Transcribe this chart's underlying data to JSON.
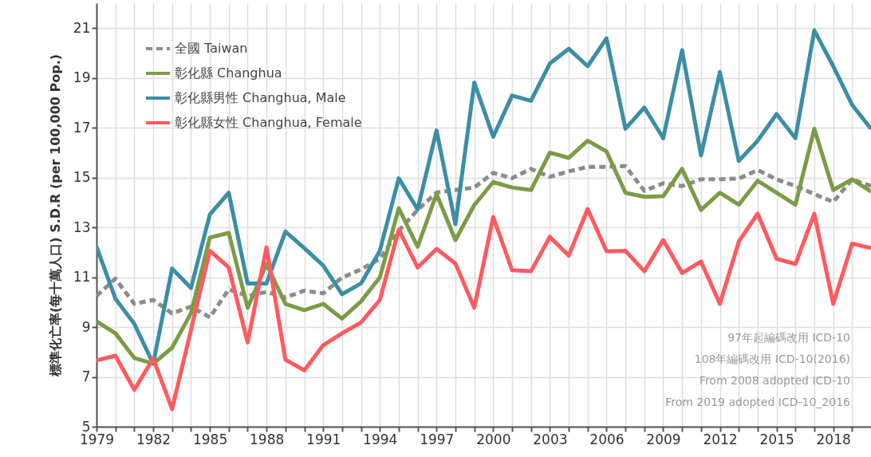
{
  "chart_data": {
    "type": "line",
    "ylabel": "標準化亡率(每十萬人口)  S.D.R (per 100,000 Pop.)",
    "x": [
      1979,
      1980,
      1981,
      1982,
      1983,
      1984,
      1985,
      1986,
      1987,
      1988,
      1989,
      1990,
      1991,
      1992,
      1993,
      1994,
      1995,
      1996,
      1997,
      1998,
      1999,
      2000,
      2001,
      2002,
      2003,
      2004,
      2005,
      2006,
      2007,
      2008,
      2009,
      2010,
      2011,
      2012,
      2013,
      2014,
      2015,
      2016,
      2017,
      2018,
      2019,
      2020
    ],
    "series": [
      {
        "name": "全國 Taiwan",
        "color": "#8c8c8c",
        "line_style": "dashed",
        "values": [
          10.25,
          10.94,
          9.93,
          10.09,
          9.55,
          9.82,
          9.39,
          10.51,
          10.25,
          10.41,
          10.19,
          10.46,
          10.35,
          10.99,
          11.31,
          11.74,
          12.86,
          13.7,
          14.4,
          14.5,
          14.6,
          15.19,
          14.98,
          15.35,
          15.03,
          15.25,
          15.43,
          15.43,
          15.46,
          14.47,
          14.77,
          14.66,
          14.93,
          14.93,
          14.96,
          15.3,
          14.93,
          14.66,
          14.34,
          14.02,
          14.93,
          14.66
        ]
      },
      {
        "name": "彰化縣 Changhua",
        "color": "#7b9c47",
        "line_style": "solid",
        "values": [
          9.23,
          8.75,
          7.76,
          7.53,
          8.17,
          9.55,
          12.59,
          12.78,
          9.77,
          11.53,
          9.93,
          9.68,
          9.93,
          9.34,
          10.03,
          10.99,
          13.77,
          12.22,
          14.34,
          12.49,
          13.9,
          14.82,
          14.6,
          14.5,
          16.0,
          15.79,
          16.48,
          16.05,
          14.39,
          14.23,
          14.25,
          15.35,
          13.7,
          14.39,
          13.91,
          14.87,
          14.39,
          13.91,
          16.96,
          14.5,
          14.93,
          14.44
        ]
      },
      {
        "name": "彰化縣男性 Changhua, Male",
        "color": "#3b8ea5",
        "line_style": "solid",
        "values": [
          12.22,
          10.14,
          9.13,
          7.53,
          11.35,
          10.57,
          13.52,
          14.39,
          10.75,
          10.75,
          12.83,
          12.17,
          11.47,
          10.32,
          10.75,
          12.06,
          14.97,
          13.72,
          16.89,
          13.13,
          18.81,
          16.64,
          18.29,
          18.08,
          19.58,
          20.17,
          19.47,
          20.59,
          16.96,
          17.81,
          16.58,
          20.11,
          15.89,
          19.24,
          15.67,
          16.48,
          17.55,
          16.58,
          20.91,
          19.47,
          17.92,
          16.96
        ]
      },
      {
        "name": "彰化縣女性 Changhua, Female",
        "color": "#ff5a5f",
        "line_style": "solid",
        "values": [
          7.66,
          7.85,
          6.48,
          7.74,
          5.71,
          8.88,
          12.06,
          11.39,
          8.38,
          12.2,
          7.69,
          7.26,
          8.27,
          8.75,
          9.18,
          10.09,
          12.91,
          11.39,
          12.14,
          11.55,
          9.77,
          13.42,
          11.28,
          11.24,
          12.62,
          11.87,
          13.74,
          12.04,
          12.06,
          11.24,
          12.49,
          11.17,
          11.63,
          9.93,
          12.43,
          13.55,
          11.74,
          11.53,
          13.55,
          9.93,
          12.35,
          12.17
        ]
      }
    ],
    "xlim": [
      1979,
      2020
    ],
    "xticks": [
      1979,
      {
        "value": 1980,
        "label": null
      },
      {
        "value": 1981,
        "label": null
      },
      1982,
      {
        "value": 1983,
        "label": null
      },
      {
        "value": 1984,
        "label": null
      },
      1985,
      {
        "value": 1986,
        "label": null
      },
      {
        "value": 1987,
        "label": null
      },
      1988,
      {
        "value": 1989,
        "label": null
      },
      {
        "value": 1990,
        "label": null
      },
      1991,
      {
        "value": 1992,
        "label": null
      },
      {
        "value": 1993,
        "label": null
      },
      1994,
      {
        "value": 1995,
        "label": null
      },
      {
        "value": 1996,
        "label": null
      },
      1997,
      {
        "value": 1998,
        "label": null
      },
      {
        "value": 1999,
        "label": null
      },
      2000,
      {
        "value": 2001,
        "label": null
      },
      {
        "value": 2002,
        "label": null
      },
      2003,
      {
        "value": 2004,
        "label": null
      },
      {
        "value": 2005,
        "label": null
      },
      2006,
      {
        "value": 2007,
        "label": null
      },
      {
        "value": 2008,
        "label": null
      },
      2009,
      {
        "value": 2010,
        "label": null
      },
      {
        "value": 2011,
        "label": null
      },
      2012,
      {
        "value": 2013,
        "label": null
      },
      {
        "value": 2014,
        "label": null
      },
      2015,
      {
        "value": 2016,
        "label": null
      },
      {
        "value": 2017,
        "label": null
      },
      2018,
      {
        "value": 2019,
        "label": null
      }
    ],
    "ylim": [
      5,
      22
    ],
    "yticks": [
      5,
      7,
      9,
      11,
      13,
      15,
      17,
      19,
      21
    ],
    "grid": true,
    "legend": "top left",
    "marker": "none",
    "annotations": [
      "97年起編碼改用 ICD-10",
      "108年編碼改用 ICD-10(2016)",
      "From 2008 adopted ICD-10",
      "From 2019 adopted ICD-10_2016"
    ]
  }
}
